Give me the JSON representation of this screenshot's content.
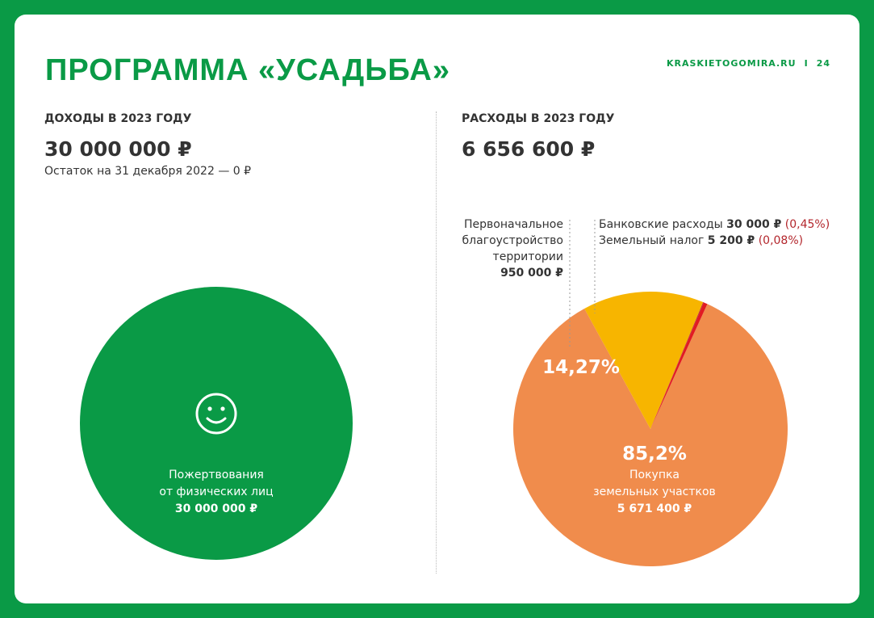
{
  "header": {
    "title": "ПРОГРАММА «УСАДЬБА»",
    "site": "KRASKIETOGOMIRA.RU",
    "separator": "I",
    "page_number": "24"
  },
  "income": {
    "heading": "ДОХОДЫ В 2023 ГОДУ",
    "amount": "30 000 000 ₽",
    "balance_note": "Остаток на 31 декабря 2022 — 0 ₽",
    "smile_icon": "smiley-face-icon"
  },
  "expenses": {
    "heading": "РАСХОДЫ В 2023 ГОДУ",
    "amount": "6 656 600 ₽"
  },
  "chart_data": [
    {
      "type": "pie",
      "slices": [
        {
          "label_lines": [
            "Пожертвования",
            "от физических лиц"
          ],
          "amount": "30 000 000 ₽",
          "value": 30000000,
          "color": "#0a9a46"
        }
      ]
    },
    {
      "type": "pie",
      "slices": [
        {
          "label_lines": [
            "Покупка",
            "земельных участков"
          ],
          "amount": "5 671 400 ₽",
          "percent_label": "85,2%",
          "value": 5671400,
          "color": "#f08c4c"
        },
        {
          "label_lines": [
            "Первоначальное",
            "благоустройство",
            "территории"
          ],
          "amount": "950 000 ₽",
          "percent_label": "14,27%",
          "value": 950000,
          "color": "#f7b500"
        },
        {
          "label": "Земельный налог",
          "amount": "5 200 ₽",
          "percent_label": "(0,08%)",
          "value": 5200,
          "color": "#b3262c"
        },
        {
          "label": "Банковские расходы",
          "amount": "30 000 ₽",
          "percent_label": "(0,45%)",
          "value": 30000,
          "color": "#e11b22"
        }
      ]
    }
  ]
}
